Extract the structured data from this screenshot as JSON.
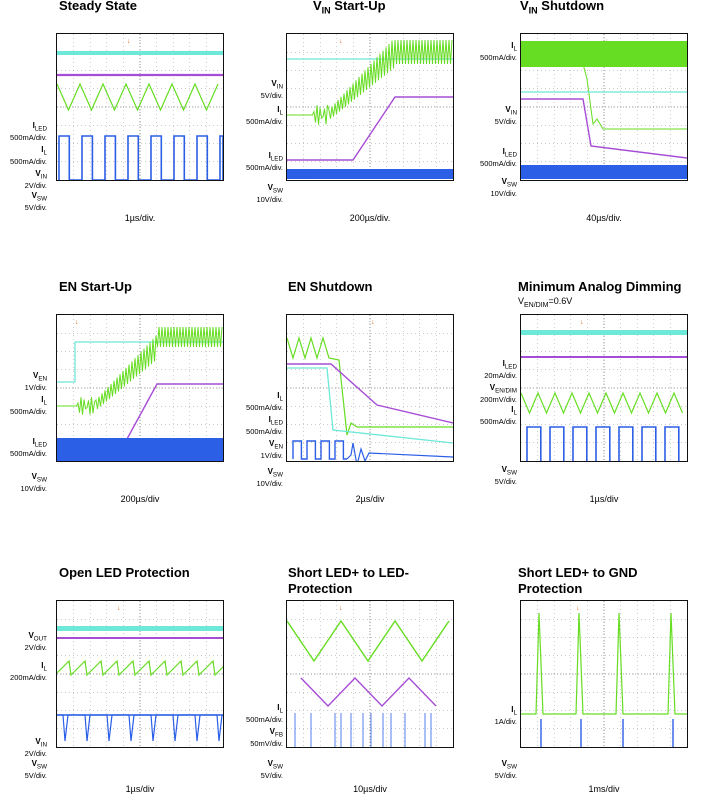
{
  "colors": {
    "cyan": "#6ee8d8",
    "purple": "#a64dd6",
    "green": "#66dd22",
    "blue": "#2b5fe6",
    "trigger": "#e07020",
    "grid": "#9a9a9a"
  },
  "chart_data": [
    {
      "type": "line",
      "title": "Steady State",
      "subtitle": "",
      "timebase": "1µs/div.",
      "channels": [
        {
          "name": "I_LED",
          "label": "Iₗₑᴅ",
          "scale": "500mA/div."
        },
        {
          "name": "I_L",
          "scale": "500mA/div."
        },
        {
          "name": "V_IN",
          "scale": "2V/div."
        },
        {
          "name": "V_SW",
          "scale": "5V/div."
        }
      ]
    },
    {
      "type": "line",
      "title": "V_IN Start-Up",
      "subtitle": "",
      "timebase": "200µs/div.",
      "channels": [
        {
          "name": "V_IN",
          "scale": "5V/div."
        },
        {
          "name": "I_L",
          "scale": "500mA/div."
        },
        {
          "name": "I_LED",
          "scale": "500mA/div."
        },
        {
          "name": "V_SW",
          "scale": "10V/div."
        }
      ]
    },
    {
      "type": "line",
      "title": "V_IN Shutdown",
      "subtitle": "",
      "timebase": "40µs/div.",
      "channels": [
        {
          "name": "I_L",
          "scale": "500mA/div."
        },
        {
          "name": "V_IN",
          "scale": "5V/div."
        },
        {
          "name": "I_LED",
          "scale": "500mA/div."
        },
        {
          "name": "V_SW",
          "scale": "10V/div."
        }
      ]
    },
    {
      "type": "line",
      "title": "EN Start-Up",
      "subtitle": "",
      "timebase": "200µs/div",
      "channels": [
        {
          "name": "V_EN",
          "scale": "1V/div."
        },
        {
          "name": "I_L",
          "scale": "500mA/div."
        },
        {
          "name": "I_LED",
          "scale": "500mA/div."
        },
        {
          "name": "V_SW",
          "scale": "10V/div."
        }
      ]
    },
    {
      "type": "line",
      "title": "EN Shutdown",
      "subtitle": "",
      "timebase": "2µs/div",
      "channels": [
        {
          "name": "I_L",
          "scale": "500mA/div."
        },
        {
          "name": "I_LED",
          "scale": "500mA/div."
        },
        {
          "name": "V_EN",
          "scale": "1V/div."
        },
        {
          "name": "V_SW",
          "scale": "10V/div."
        }
      ]
    },
    {
      "type": "line",
      "title": "Minimum Analog Dimming",
      "subtitle": "V_EN/DIM=0.6V",
      "timebase": "1µs/div",
      "channels": [
        {
          "name": "I_LED",
          "scale": "20mA/div."
        },
        {
          "name": "V_EN/DIM",
          "scale": "200mV/div."
        },
        {
          "name": "I_L",
          "scale": "500mA/div."
        },
        {
          "name": "V_SW",
          "scale": "5V/div."
        }
      ]
    },
    {
      "type": "line",
      "title": "Open LED Protection",
      "subtitle": "",
      "timebase": "1µs/div",
      "channels": [
        {
          "name": "V_OUT",
          "scale": "2V/div."
        },
        {
          "name": "I_L",
          "scale": "200mA/div."
        },
        {
          "name": "V_IN",
          "scale": "2V/div."
        },
        {
          "name": "V_SW",
          "scale": "5V/div."
        }
      ]
    },
    {
      "type": "line",
      "title": "Short LED+ to LED- Protection",
      "subtitle": "",
      "timebase": "10µs/div",
      "channels": [
        {
          "name": "I_L",
          "scale": "500mA/div."
        },
        {
          "name": "V_FB",
          "scale": "50mV/div."
        },
        {
          "name": "V_SW",
          "scale": "5V/div."
        }
      ]
    },
    {
      "type": "line",
      "title": "Short LED+ to GND Protection",
      "subtitle": "",
      "timebase": "1ms/div",
      "channels": [
        {
          "name": "I_L",
          "scale": "1A/div."
        },
        {
          "name": "V_SW",
          "scale": "5V/div."
        }
      ]
    }
  ],
  "labels": {
    "p0": {
      "c0n": "I",
      "c0s": "LED",
      "c0v": "500mA/div.",
      "c1n": "I",
      "c1s": "L",
      "c1v": "500mA/div.",
      "c2n": "V",
      "c2s": "IN",
      "c2v": "2V/div.",
      "c3n": "V",
      "c3s": "SW",
      "c3v": "5V/div."
    },
    "p1": {
      "c0n": "V",
      "c0s": "IN",
      "c0v": "5V/div.",
      "c1n": "I",
      "c1s": "L",
      "c1v": "500mA/div.",
      "c2n": "I",
      "c2s": "LED",
      "c2v": "500mA/div.",
      "c3n": "V",
      "c3s": "SW",
      "c3v": "10V/div."
    },
    "p2": {
      "c0n": "I",
      "c0s": "L",
      "c0v": "500mA/div.",
      "c1n": "V",
      "c1s": "IN",
      "c1v": "5V/div.",
      "c2n": "I",
      "c2s": "LED",
      "c2v": "500mA/div.",
      "c3n": "V",
      "c3s": "SW",
      "c3v": "10V/div."
    },
    "p3": {
      "c0n": "V",
      "c0s": "EN",
      "c0v": "1V/div.",
      "c1n": "I",
      "c1s": "L",
      "c1v": "500mA/div.",
      "c2n": "I",
      "c2s": "LED",
      "c2v": "500mA/div.",
      "c3n": "V",
      "c3s": "SW",
      "c3v": "10V/div."
    },
    "p4": {
      "c0n": "I",
      "c0s": "L",
      "c0v": "500mA/div.",
      "c1n": "I",
      "c1s": "LED",
      "c1v": "500mA/div.",
      "c2n": "V",
      "c2s": "EN",
      "c2v": "1V/div.",
      "c3n": "V",
      "c3s": "SW",
      "c3v": "10V/div."
    },
    "p5": {
      "c0n": "I",
      "c0s": "LED",
      "c0v": "20mA/div.",
      "c1n": "V",
      "c1s": "EN/DIM",
      "c1v": "200mV/div.",
      "c2n": "I",
      "c2s": "L",
      "c2v": "500mA/div.",
      "c3n": "V",
      "c3s": "SW",
      "c3v": "5V/div."
    },
    "p6": {
      "c0n": "V",
      "c0s": "OUT",
      "c0v": "2V/div.",
      "c1n": "I",
      "c1s": "L",
      "c1v": "200mA/div.",
      "c2n": "V",
      "c2s": "IN",
      "c2v": "2V/div.",
      "c3n": "V",
      "c3s": "SW",
      "c3v": "5V/div."
    },
    "p7": {
      "c0n": "I",
      "c0s": "L",
      "c0v": "500mA/div.",
      "c1n": "V",
      "c1s": "FB",
      "c1v": "50mV/div.",
      "c2n": "V",
      "c2s": "SW",
      "c2v": "5V/div."
    },
    "p8": {
      "c0n": "I",
      "c0s": "L",
      "c0v": "1A/div.",
      "c1n": "V",
      "c1s": "SW",
      "c1v": "5V/div."
    }
  },
  "titles": {
    "t0": "Steady State",
    "t1": "V",
    "t1s": "IN",
    "t1b": " Start-Up",
    "t2": "V",
    "t2s": "IN",
    "t2b": " Shutdown",
    "t3": "EN Start-Up",
    "t4": "EN Shutdown",
    "t5": "Minimum Analog Dimming",
    "t5sub_n": "V",
    "t5sub_s": "EN/DIM",
    "t5sub_v": "=0.6V",
    "t6": "Open LED Protection",
    "t7a": "Short LED+ to LED-",
    "t7b": "Protection",
    "t8a": "Short LED+ to GND",
    "t8b": "Protection"
  },
  "timebases": {
    "tb0": "1µs/div.",
    "tb1": "200µs/div.",
    "tb2": "40µs/div.",
    "tb3": "200µs/div",
    "tb4": "2µs/div",
    "tb5": "1µs/div",
    "tb6": "1µs/div",
    "tb7": "10µs/div",
    "tb8": "1ms/div"
  }
}
